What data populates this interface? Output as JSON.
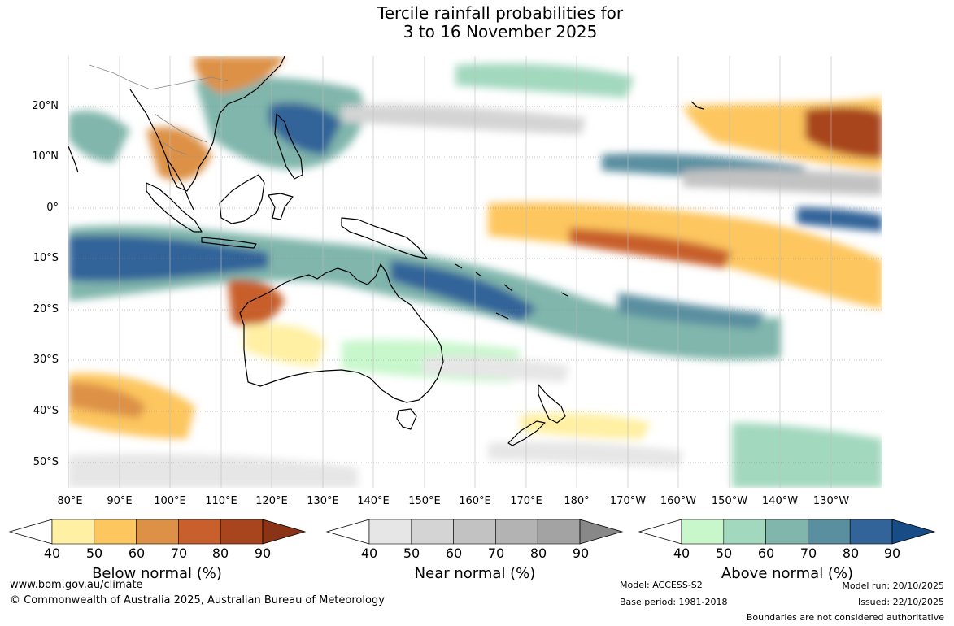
{
  "title": {
    "line1": "Tercile rainfall probabilities for",
    "line2": "3 to 16 November 2025"
  },
  "map": {
    "lat_labels": [
      "20°N",
      "10°N",
      "0°",
      "10°S",
      "20°S",
      "30°S",
      "40°S",
      "50°S"
    ],
    "lon_labels": [
      "80°E",
      "90°E",
      "100°E",
      "110°E",
      "120°E",
      "130°E",
      "140°E",
      "150°E",
      "160°E",
      "170°E",
      "180°",
      "170°W",
      "160°W",
      "150°W",
      "140°W",
      "130°W"
    ]
  },
  "legends": [
    {
      "title": "Below normal (%)",
      "ticks": [
        "40",
        "50",
        "60",
        "70",
        "80",
        "90"
      ],
      "colors": [
        "#fff0a3",
        "#fdc65f",
        "#dd9146",
        "#c85f2c",
        "#a8441e",
        "#8a3316"
      ]
    },
    {
      "title": "Near normal (%)",
      "ticks": [
        "40",
        "50",
        "60",
        "70",
        "80",
        "90"
      ],
      "colors": [
        "#e6e6e6",
        "#d4d4d4",
        "#c2c2c2",
        "#b3b3b3",
        "#a3a3a3",
        "#888888"
      ]
    },
    {
      "title": "Above normal (%)",
      "ticks": [
        "40",
        "50",
        "60",
        "70",
        "80",
        "90"
      ],
      "colors": [
        "#c8f7cc",
        "#a2d8be",
        "#80b6ac",
        "#5a8fa0",
        "#336499",
        "#164d86"
      ]
    }
  ],
  "footer": {
    "website": "www.bom.gov.au/climate",
    "copyright": "© Commonwealth of Australia 2025, Australian Bureau of Meteorology",
    "model": "Model: ACCESS-S2",
    "base_period": "Base period: 1981-2018",
    "model_run": "Model run: 20/10/2025",
    "issued": "Issued: 22/10/2025",
    "disclaimer": "Boundaries are not considered authoritative"
  }
}
